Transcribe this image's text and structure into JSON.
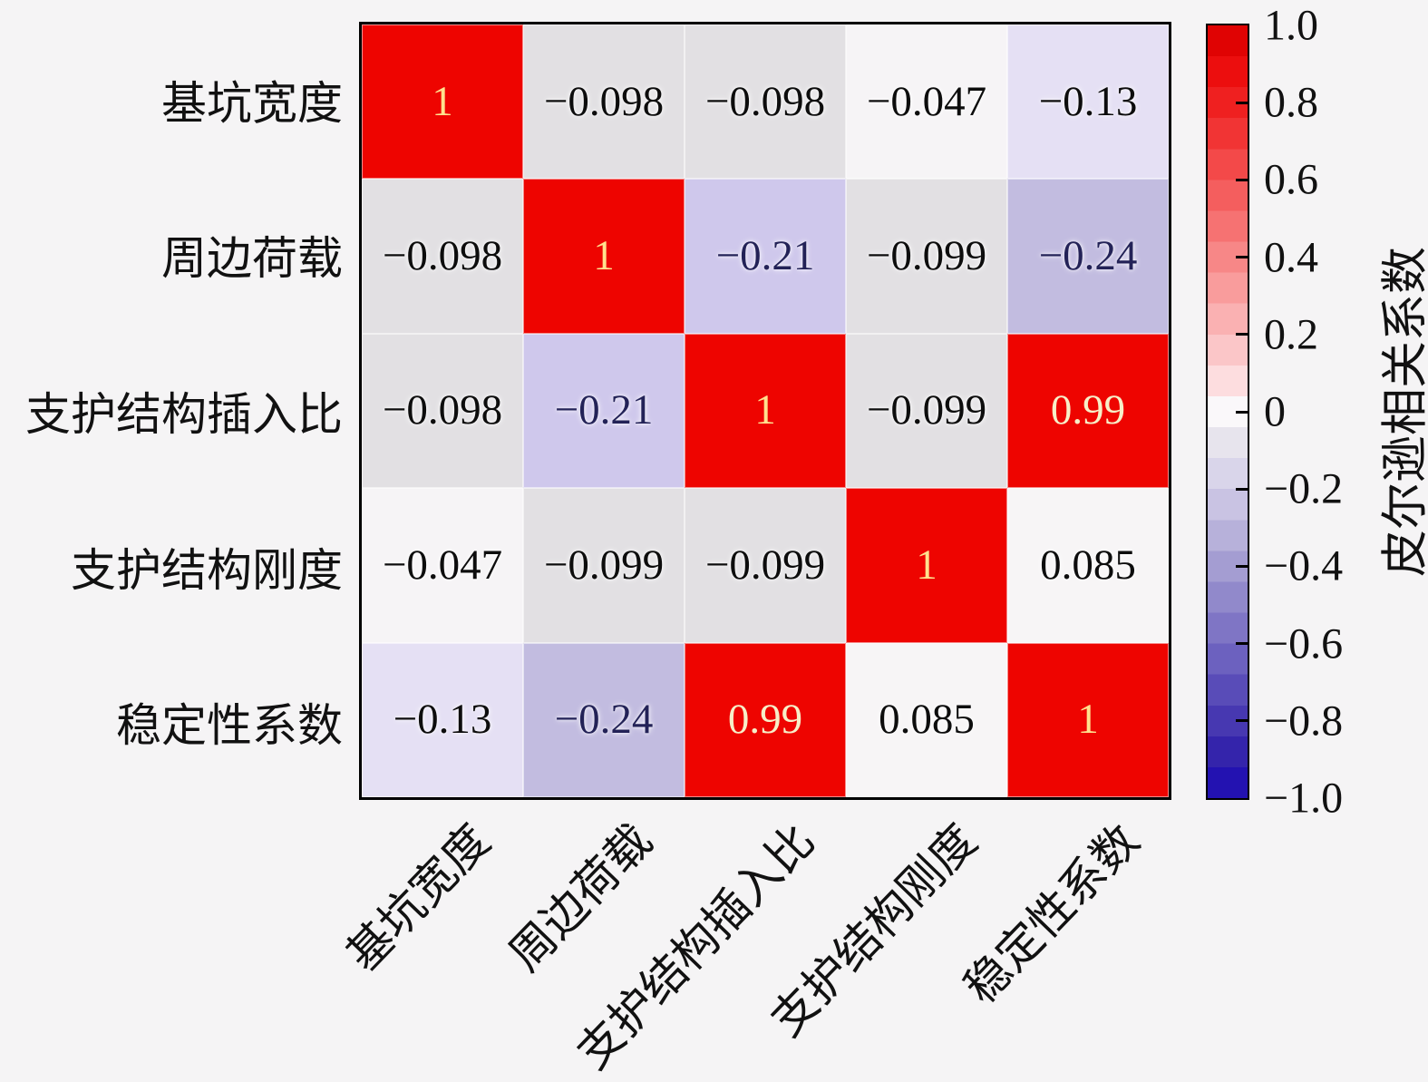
{
  "figure": {
    "background": "#f5f4f5",
    "frame_color": "#000000"
  },
  "matrix": {
    "row_labels": [
      "基坑宽度",
      "周边荷载",
      "支护结构插入比",
      "支护结构刚度",
      "稳定性系数"
    ],
    "col_labels": [
      "基坑宽度",
      "周边荷载",
      "支护结构插入比",
      "支护结构刚度",
      "稳定性系数"
    ],
    "cells": [
      [
        {
          "text": "1",
          "bg": "#ee0400",
          "fg": "#ffe18e"
        },
        {
          "text": "−0.098",
          "bg": "#e2e0e3",
          "fg": "#0d0d0d"
        },
        {
          "text": "−0.098",
          "bg": "#e2e0e3",
          "fg": "#0d0d0d"
        },
        {
          "text": "−0.047",
          "bg": "#f6f4f6",
          "fg": "#0d0d0d"
        },
        {
          "text": "−0.13",
          "bg": "#e5e0f4",
          "fg": "#0d0d0d"
        }
      ],
      [
        {
          "text": "−0.098",
          "bg": "#e2e0e3",
          "fg": "#0d0d0d"
        },
        {
          "text": "1",
          "bg": "#ee0400",
          "fg": "#ffe18e"
        },
        {
          "text": "−0.21",
          "bg": "#cfc8ec",
          "fg": "#232257"
        },
        {
          "text": "−0.099",
          "bg": "#e2e0e3",
          "fg": "#0d0d0d"
        },
        {
          "text": "−0.24",
          "bg": "#c2bce0",
          "fg": "#232257"
        }
      ],
      [
        {
          "text": "−0.098",
          "bg": "#e2e0e3",
          "fg": "#0d0d0d"
        },
        {
          "text": "−0.21",
          "bg": "#cfc8ec",
          "fg": "#232257"
        },
        {
          "text": "1",
          "bg": "#ee0400",
          "fg": "#ffe18e"
        },
        {
          "text": "−0.099",
          "bg": "#e2e0e3",
          "fg": "#0d0d0d"
        },
        {
          "text": "0.99",
          "bg": "#ee0400",
          "fg": "#f7efc8"
        }
      ],
      [
        {
          "text": "−0.047",
          "bg": "#f6f4f6",
          "fg": "#0d0d0d"
        },
        {
          "text": "−0.099",
          "bg": "#e2e0e3",
          "fg": "#0d0d0d"
        },
        {
          "text": "−0.099",
          "bg": "#e2e0e3",
          "fg": "#0d0d0d"
        },
        {
          "text": "1",
          "bg": "#ee0400",
          "fg": "#ffe18e"
        },
        {
          "text": "0.085",
          "bg": "#f7f5f6",
          "fg": "#0d0d0d"
        }
      ],
      [
        {
          "text": "−0.13",
          "bg": "#e5e0f4",
          "fg": "#0d0d0d"
        },
        {
          "text": "−0.24",
          "bg": "#c2bce0",
          "fg": "#232257"
        },
        {
          "text": "0.99",
          "bg": "#ee0400",
          "fg": "#f7efc8"
        },
        {
          "text": "0.085",
          "bg": "#f7f5f6",
          "fg": "#0d0d0d"
        },
        {
          "text": "1",
          "bg": "#ee0400",
          "fg": "#ffe18e"
        }
      ]
    ]
  },
  "colorbar": {
    "title": "皮尔逊相关系数",
    "tick_labels": [
      "1.0",
      "0.8",
      "0.6",
      "0.4",
      "0.2",
      "0",
      "−0.2",
      "−0.4",
      "−0.6",
      "−0.8",
      "−1.0"
    ],
    "tick_values": [
      1,
      0.8,
      0.6,
      0.4,
      0.2,
      0,
      -0.2,
      -0.4,
      -0.6,
      -0.8,
      -1
    ],
    "range": [
      -1,
      1
    ],
    "stops": [
      {
        "v": 1.0,
        "c": "#d60000"
      },
      {
        "v": 0.92,
        "c": "#ea0505"
      },
      {
        "v": 0.82,
        "c": "#ee1b1b"
      },
      {
        "v": 0.72,
        "c": "#f13434"
      },
      {
        "v": 0.62,
        "c": "#f34e4e"
      },
      {
        "v": 0.52,
        "c": "#f56868"
      },
      {
        "v": 0.42,
        "c": "#f78282"
      },
      {
        "v": 0.32,
        "c": "#f99c9c"
      },
      {
        "v": 0.22,
        "c": "#fab6b8"
      },
      {
        "v": 0.12,
        "c": "#fcd0d3"
      },
      {
        "v": 0.04,
        "c": "#fde9ea"
      },
      {
        "v": 0.0,
        "c": "#faf8fa"
      },
      {
        "v": -0.06,
        "c": "#eae8ee"
      },
      {
        "v": -0.16,
        "c": "#d9d5ea"
      },
      {
        "v": -0.26,
        "c": "#c5bfe1"
      },
      {
        "v": -0.36,
        "c": "#aea7d6"
      },
      {
        "v": -0.46,
        "c": "#968ecd"
      },
      {
        "v": -0.56,
        "c": "#7f75c5"
      },
      {
        "v": -0.66,
        "c": "#675cbd"
      },
      {
        "v": -0.76,
        "c": "#5042b4"
      },
      {
        "v": -0.86,
        "c": "#3929ac"
      },
      {
        "v": -0.94,
        "c": "#2413a6"
      },
      {
        "v": -1.0,
        "c": "#2110c6"
      }
    ]
  },
  "chart_data": {
    "type": "heatmap",
    "title": "",
    "x_labels": [
      "基坑宽度",
      "周边荷载",
      "支护结构插入比",
      "支护结构刚度",
      "稳定性系数"
    ],
    "y_labels": [
      "基坑宽度",
      "周边荷载",
      "支护结构插入比",
      "支护结构刚度",
      "稳定性系数"
    ],
    "values": [
      [
        1,
        -0.098,
        -0.098,
        -0.047,
        -0.13
      ],
      [
        -0.098,
        1,
        -0.21,
        -0.099,
        -0.24
      ],
      [
        -0.098,
        -0.21,
        1,
        -0.099,
        0.99
      ],
      [
        -0.047,
        -0.099,
        -0.099,
        1,
        0.085
      ],
      [
        -0.13,
        -0.24,
        0.99,
        0.085,
        1
      ]
    ],
    "colorbar_label": "皮尔逊相关系数",
    "color_range": [
      -1,
      1
    ],
    "colormap": "red-white-blue (bwr-like), red = +1, white = 0, blue = -1",
    "legend_position": "right colorbar",
    "grid": false
  }
}
